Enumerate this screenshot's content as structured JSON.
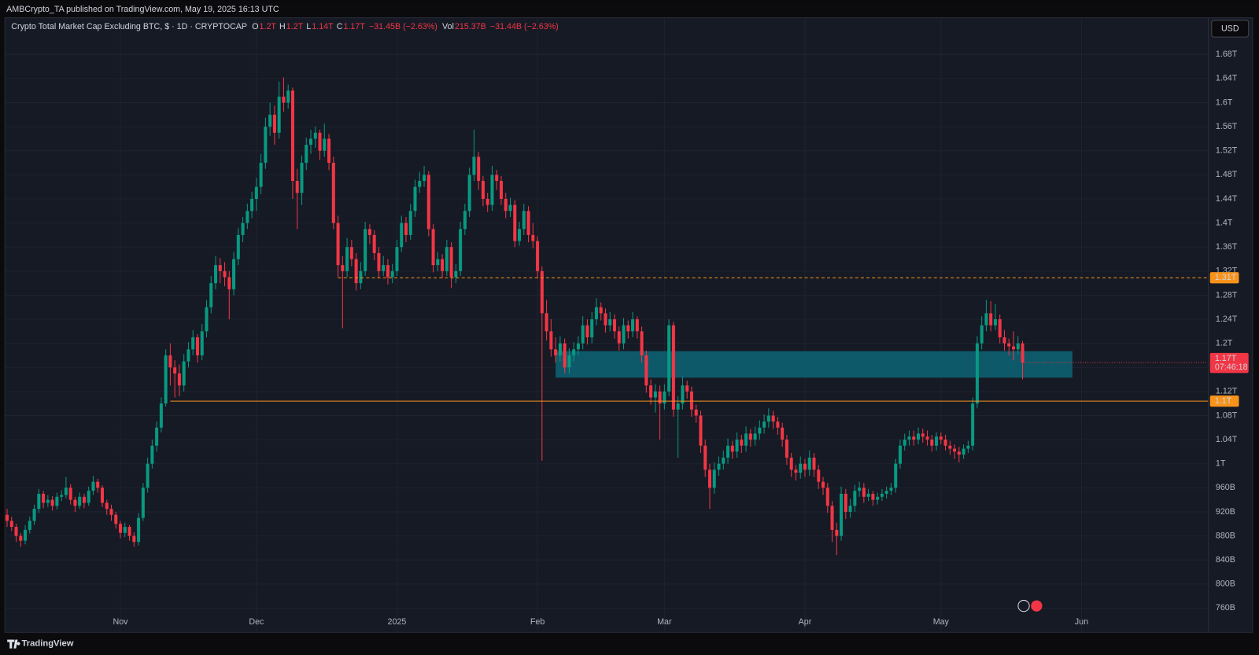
{
  "chart_data": {
    "type": "candlestick",
    "header": "AMBCrypto_TA published on TradingView.com, May 19, 2025 16:13 UTC",
    "title": "Crypto Total Market Cap Excluding BTC, $ · 1D · CRYPTOCAP",
    "legend_values": [
      {
        "key": "O",
        "value": "1.2T"
      },
      {
        "key": "H",
        "value": "1.2T"
      },
      {
        "key": "L",
        "value": "1.14T"
      },
      {
        "key": "C",
        "value": "1.17T"
      }
    ],
    "change": "−31.45B (−2.63%)",
    "volume_key": "Vol",
    "volume": "215.37B",
    "volume_change": "−31.44B (−2.63%)",
    "currency_button": "USD",
    "brand": "TradingView",
    "up_color": "#089981",
    "down_color": "#f23645",
    "grid": true,
    "xlim": [
      -0.5,
      265
    ],
    "ylim": [
      721,
      1741
    ],
    "xticks": [
      {
        "value": 25,
        "label": "Nov"
      },
      {
        "value": 55,
        "label": "Dec"
      },
      {
        "value": 86,
        "label": "2025"
      },
      {
        "value": 117,
        "label": "Feb"
      },
      {
        "value": 145,
        "label": "Mar"
      },
      {
        "value": 176,
        "label": "Apr"
      },
      {
        "value": 206,
        "label": "May"
      },
      {
        "value": 237,
        "label": "Jun"
      }
    ],
    "yticks": [
      {
        "value": 1680,
        "label": "1.68T"
      },
      {
        "value": 1640,
        "label": "1.64T"
      },
      {
        "value": 1600,
        "label": "1.6T"
      },
      {
        "value": 1560,
        "label": "1.56T"
      },
      {
        "value": 1520,
        "label": "1.52T"
      },
      {
        "value": 1480,
        "label": "1.48T"
      },
      {
        "value": 1440,
        "label": "1.44T"
      },
      {
        "value": 1400,
        "label": "1.4T"
      },
      {
        "value": 1360,
        "label": "1.36T"
      },
      {
        "value": 1320,
        "label": "1.32T"
      },
      {
        "value": 1280,
        "label": "1.28T"
      },
      {
        "value": 1240,
        "label": "1.24T"
      },
      {
        "value": 1200,
        "label": "1.2T"
      },
      {
        "value": 1160,
        "label": "1.16T"
      },
      {
        "value": 1120,
        "label": "1.12T"
      },
      {
        "value": 1080,
        "label": "1.08T"
      },
      {
        "value": 1040,
        "label": "1.04T"
      },
      {
        "value": 1000,
        "label": "1T"
      },
      {
        "value": 960,
        "label": "960B"
      },
      {
        "value": 920,
        "label": "920B"
      },
      {
        "value": 880,
        "label": "880B"
      },
      {
        "value": 840,
        "label": "840B"
      },
      {
        "value": 800,
        "label": "800B"
      },
      {
        "value": 760,
        "label": "760B"
      }
    ],
    "levels": [
      {
        "value": 1309,
        "label": "1.31T",
        "style": "dashed",
        "start": 73,
        "color": "#f7931a"
      },
      {
        "value": 1104,
        "label": "1.1T",
        "style": "solid",
        "start": 36,
        "color": "#f7931a"
      }
    ],
    "zone": {
      "low": 1143,
      "high": 1187,
      "start": 121,
      "end": 235,
      "color": "#0e5d6d"
    },
    "last_price": {
      "value": 1168,
      "label": "1.17T",
      "countdown": "07:46:18"
    },
    "ohlc": [
      [
        915,
        925,
        895,
        905
      ],
      [
        905,
        912,
        888,
        895
      ],
      [
        895,
        900,
        870,
        880
      ],
      [
        880,
        885,
        862,
        872
      ],
      [
        872,
        898,
        866,
        890
      ],
      [
        890,
        912,
        884,
        905
      ],
      [
        905,
        932,
        898,
        925
      ],
      [
        925,
        958,
        918,
        950
      ],
      [
        950,
        955,
        926,
        935
      ],
      [
        935,
        948,
        928,
        940
      ],
      [
        940,
        946,
        922,
        930
      ],
      [
        930,
        952,
        924,
        945
      ],
      [
        945,
        956,
        938,
        948
      ],
      [
        948,
        978,
        942,
        960
      ],
      [
        960,
        966,
        932,
        940
      ],
      [
        940,
        945,
        920,
        930
      ],
      [
        930,
        952,
        925,
        945
      ],
      [
        945,
        950,
        926,
        935
      ],
      [
        935,
        962,
        930,
        955
      ],
      [
        955,
        980,
        948,
        970
      ],
      [
        970,
        975,
        952,
        960
      ],
      [
        960,
        964,
        928,
        935
      ],
      [
        935,
        940,
        915,
        925
      ],
      [
        925,
        932,
        905,
        915
      ],
      [
        915,
        920,
        892,
        900
      ],
      [
        900,
        905,
        876,
        885
      ],
      [
        885,
        902,
        878,
        895
      ],
      [
        895,
        898,
        872,
        880
      ],
      [
        880,
        886,
        862,
        870
      ],
      [
        870,
        918,
        864,
        910
      ],
      [
        910,
        968,
        905,
        960
      ],
      [
        960,
        1010,
        952,
        1000
      ],
      [
        1000,
        1040,
        992,
        1030
      ],
      [
        1030,
        1070,
        1020,
        1060
      ],
      [
        1060,
        1110,
        1052,
        1100
      ],
      [
        1100,
        1190,
        1095,
        1180
      ],
      [
        1180,
        1200,
        1130,
        1160
      ],
      [
        1160,
        1172,
        1110,
        1150
      ],
      [
        1150,
        1165,
        1112,
        1130
      ],
      [
        1130,
        1182,
        1120,
        1170
      ],
      [
        1170,
        1202,
        1160,
        1190
      ],
      [
        1190,
        1222,
        1180,
        1210
      ],
      [
        1210,
        1215,
        1168,
        1180
      ],
      [
        1180,
        1232,
        1172,
        1220
      ],
      [
        1220,
        1272,
        1210,
        1260
      ],
      [
        1260,
        1312,
        1250,
        1300
      ],
      [
        1300,
        1345,
        1290,
        1330
      ],
      [
        1330,
        1342,
        1300,
        1320
      ],
      [
        1320,
        1335,
        1295,
        1310
      ],
      [
        1310,
        1320,
        1240,
        1290
      ],
      [
        1290,
        1352,
        1280,
        1340
      ],
      [
        1340,
        1392,
        1330,
        1380
      ],
      [
        1380,
        1410,
        1368,
        1400
      ],
      [
        1400,
        1432,
        1390,
        1420
      ],
      [
        1420,
        1452,
        1408,
        1440
      ],
      [
        1440,
        1475,
        1420,
        1460
      ],
      [
        1460,
        1515,
        1448,
        1500
      ],
      [
        1500,
        1575,
        1490,
        1560
      ],
      [
        1560,
        1600,
        1545,
        1580
      ],
      [
        1580,
        1595,
        1530,
        1550
      ],
      [
        1550,
        1635,
        1540,
        1610
      ],
      [
        1610,
        1642,
        1585,
        1600
      ],
      [
        1600,
        1630,
        1590,
        1620
      ],
      [
        1620,
        1625,
        1440,
        1470
      ],
      [
        1470,
        1490,
        1390,
        1450
      ],
      [
        1450,
        1512,
        1430,
        1500
      ],
      [
        1500,
        1542,
        1488,
        1530
      ],
      [
        1530,
        1555,
        1515,
        1540
      ],
      [
        1540,
        1560,
        1525,
        1550
      ],
      [
        1550,
        1555,
        1505,
        1520
      ],
      [
        1520,
        1565,
        1510,
        1540
      ],
      [
        1540,
        1548,
        1488,
        1500
      ],
      [
        1500,
        1510,
        1390,
        1400
      ],
      [
        1400,
        1412,
        1310,
        1330
      ],
      [
        1330,
        1345,
        1225,
        1320
      ],
      [
        1320,
        1375,
        1310,
        1360
      ],
      [
        1360,
        1372,
        1328,
        1340
      ],
      [
        1340,
        1350,
        1288,
        1300
      ],
      [
        1300,
        1335,
        1290,
        1320
      ],
      [
        1320,
        1402,
        1312,
        1390
      ],
      [
        1390,
        1398,
        1365,
        1380
      ],
      [
        1380,
        1388,
        1338,
        1350
      ],
      [
        1350,
        1360,
        1308,
        1320
      ],
      [
        1320,
        1345,
        1312,
        1330
      ],
      [
        1330,
        1340,
        1298,
        1310
      ],
      [
        1310,
        1332,
        1300,
        1320
      ],
      [
        1320,
        1372,
        1312,
        1360
      ],
      [
        1360,
        1412,
        1352,
        1400
      ],
      [
        1400,
        1410,
        1368,
        1380
      ],
      [
        1380,
        1432,
        1372,
        1420
      ],
      [
        1420,
        1472,
        1410,
        1460
      ],
      [
        1460,
        1485,
        1450,
        1470
      ],
      [
        1470,
        1495,
        1460,
        1480
      ],
      [
        1480,
        1486,
        1378,
        1390
      ],
      [
        1390,
        1398,
        1318,
        1330
      ],
      [
        1330,
        1352,
        1320,
        1340
      ],
      [
        1340,
        1348,
        1308,
        1320
      ],
      [
        1320,
        1372,
        1312,
        1360
      ],
      [
        1360,
        1368,
        1292,
        1310
      ],
      [
        1310,
        1332,
        1300,
        1320
      ],
      [
        1320,
        1402,
        1312,
        1390
      ],
      [
        1390,
        1432,
        1380,
        1420
      ],
      [
        1420,
        1492,
        1410,
        1480
      ],
      [
        1480,
        1555,
        1470,
        1510
      ],
      [
        1510,
        1518,
        1455,
        1470
      ],
      [
        1470,
        1478,
        1428,
        1440
      ],
      [
        1440,
        1450,
        1418,
        1430
      ],
      [
        1430,
        1495,
        1420,
        1480
      ],
      [
        1480,
        1488,
        1455,
        1470
      ],
      [
        1470,
        1478,
        1430,
        1440
      ],
      [
        1440,
        1450,
        1408,
        1420
      ],
      [
        1420,
        1442,
        1410,
        1430
      ],
      [
        1430,
        1438,
        1360,
        1370
      ],
      [
        1370,
        1402,
        1362,
        1390
      ],
      [
        1390,
        1432,
        1380,
        1420
      ],
      [
        1420,
        1428,
        1368,
        1380
      ],
      [
        1380,
        1400,
        1358,
        1370
      ],
      [
        1370,
        1378,
        1308,
        1320
      ],
      [
        1320,
        1328,
        1005,
        1250
      ],
      [
        1250,
        1272,
        1205,
        1220
      ],
      [
        1220,
        1240,
        1178,
        1190
      ],
      [
        1190,
        1210,
        1168,
        1180
      ],
      [
        1180,
        1212,
        1170,
        1200
      ],
      [
        1200,
        1208,
        1150,
        1160
      ],
      [
        1160,
        1192,
        1150,
        1180
      ],
      [
        1180,
        1202,
        1170,
        1190
      ],
      [
        1190,
        1212,
        1180,
        1200
      ],
      [
        1200,
        1245,
        1190,
        1230
      ],
      [
        1230,
        1240,
        1198,
        1210
      ],
      [
        1210,
        1252,
        1200,
        1240
      ],
      [
        1240,
        1275,
        1230,
        1260
      ],
      [
        1260,
        1268,
        1238,
        1250
      ],
      [
        1250,
        1258,
        1218,
        1230
      ],
      [
        1230,
        1252,
        1220,
        1240
      ],
      [
        1240,
        1248,
        1208,
        1220
      ],
      [
        1220,
        1228,
        1188,
        1200
      ],
      [
        1200,
        1242,
        1190,
        1230
      ],
      [
        1230,
        1238,
        1208,
        1220
      ],
      [
        1220,
        1252,
        1210,
        1240
      ],
      [
        1240,
        1245,
        1208,
        1220
      ],
      [
        1220,
        1228,
        1168,
        1180
      ],
      [
        1180,
        1188,
        1118,
        1130
      ],
      [
        1130,
        1140,
        1098,
        1110
      ],
      [
        1110,
        1132,
        1085,
        1120
      ],
      [
        1120,
        1130,
        1040,
        1100
      ],
      [
        1100,
        1132,
        1090,
        1120
      ],
      [
        1120,
        1240,
        1112,
        1230
      ],
      [
        1230,
        1236,
        1078,
        1090
      ],
      [
        1090,
        1112,
        1010,
        1100
      ],
      [
        1100,
        1145,
        1090,
        1130
      ],
      [
        1130,
        1138,
        1108,
        1120
      ],
      [
        1120,
        1128,
        1078,
        1090
      ],
      [
        1090,
        1098,
        1068,
        1080
      ],
      [
        1080,
        1088,
        1018,
        1030
      ],
      [
        1030,
        1040,
        978,
        990
      ],
      [
        990,
        1000,
        925,
        960
      ],
      [
        960,
        1002,
        950,
        990
      ],
      [
        990,
        1012,
        980,
        1000
      ],
      [
        1000,
        1022,
        990,
        1010
      ],
      [
        1010,
        1042,
        1000,
        1030
      ],
      [
        1030,
        1038,
        1008,
        1020
      ],
      [
        1020,
        1052,
        1010,
        1040
      ],
      [
        1040,
        1048,
        1018,
        1030
      ],
      [
        1030,
        1062,
        1020,
        1050
      ],
      [
        1050,
        1058,
        1028,
        1040
      ],
      [
        1040,
        1062,
        1030,
        1050
      ],
      [
        1050,
        1072,
        1040,
        1060
      ],
      [
        1060,
        1082,
        1050,
        1070
      ],
      [
        1070,
        1092,
        1060,
        1080
      ],
      [
        1080,
        1088,
        1058,
        1070
      ],
      [
        1070,
        1078,
        1048,
        1060
      ],
      [
        1060,
        1068,
        1028,
        1040
      ],
      [
        1040,
        1048,
        998,
        1010
      ],
      [
        1010,
        1018,
        978,
        990
      ],
      [
        990,
        998,
        972,
        985
      ],
      [
        985,
        1012,
        975,
        1000
      ],
      [
        1000,
        1008,
        978,
        990
      ],
      [
        990,
        1022,
        980,
        1010
      ],
      [
        1010,
        1018,
        978,
        990
      ],
      [
        990,
        998,
        958,
        970
      ],
      [
        970,
        978,
        948,
        960
      ],
      [
        960,
        968,
        918,
        930
      ],
      [
        930,
        938,
        870,
        890
      ],
      [
        890,
        902,
        848,
        880
      ],
      [
        880,
        962,
        872,
        950
      ],
      [
        950,
        958,
        908,
        920
      ],
      [
        920,
        942,
        910,
        930
      ],
      [
        930,
        965,
        920,
        955
      ],
      [
        955,
        970,
        945,
        960
      ],
      [
        960,
        968,
        935,
        945
      ],
      [
        945,
        958,
        938,
        950
      ],
      [
        950,
        955,
        930,
        940
      ],
      [
        940,
        952,
        932,
        945
      ],
      [
        945,
        958,
        938,
        950
      ],
      [
        950,
        962,
        942,
        955
      ],
      [
        955,
        968,
        948,
        960
      ],
      [
        960,
        1008,
        952,
        1000
      ],
      [
        1000,
        1040,
        992,
        1030
      ],
      [
        1030,
        1050,
        1022,
        1040
      ],
      [
        1040,
        1055,
        1030,
        1045
      ],
      [
        1045,
        1055,
        1030,
        1040
      ],
      [
        1040,
        1060,
        1032,
        1050
      ],
      [
        1050,
        1058,
        1035,
        1045
      ],
      [
        1045,
        1055,
        1030,
        1040
      ],
      [
        1040,
        1048,
        1020,
        1030
      ],
      [
        1030,
        1052,
        1022,
        1045
      ],
      [
        1045,
        1052,
        1032,
        1040
      ],
      [
        1040,
        1048,
        1022,
        1030
      ],
      [
        1030,
        1038,
        1015,
        1025
      ],
      [
        1025,
        1032,
        1008,
        1020
      ],
      [
        1020,
        1028,
        1002,
        1015
      ],
      [
        1015,
        1032,
        1008,
        1025
      ],
      [
        1025,
        1038,
        1018,
        1030
      ],
      [
        1030,
        1110,
        1022,
        1100
      ],
      [
        1100,
        1212,
        1092,
        1200
      ],
      [
        1200,
        1245,
        1190,
        1230
      ],
      [
        1230,
        1272,
        1220,
        1250
      ],
      [
        1250,
        1270,
        1220,
        1230
      ],
      [
        1230,
        1265,
        1222,
        1240
      ],
      [
        1240,
        1248,
        1200,
        1210
      ],
      [
        1210,
        1222,
        1188,
        1200
      ],
      [
        1200,
        1208,
        1180,
        1195
      ],
      [
        1195,
        1220,
        1172,
        1190
      ],
      [
        1190,
        1212,
        1182,
        1200
      ],
      [
        1200,
        1204,
        1140,
        1168
      ]
    ]
  }
}
